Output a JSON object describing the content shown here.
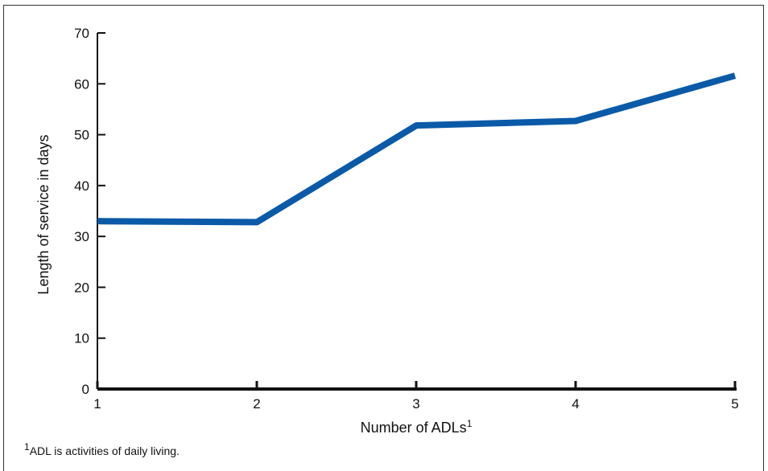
{
  "chart_data": {
    "type": "line",
    "x": [
      1,
      2,
      3,
      4,
      5
    ],
    "series": [
      {
        "values": [
          33,
          32.8,
          51.8,
          52.7,
          61.6
        ],
        "color": "#0a5aa8"
      }
    ],
    "xlabel": "Number of ADLs",
    "xlabel_sup": "1",
    "ylabel": "Length of service in days",
    "xlim": [
      1,
      5
    ],
    "ylim": [
      0,
      70
    ],
    "yticks": [
      0,
      10,
      20,
      30,
      40,
      50,
      60,
      70
    ],
    "xticks": [
      1,
      2,
      3,
      4,
      5
    ],
    "grid": false
  },
  "footnote": {
    "marker": "1",
    "text": "ADL is activities of daily living."
  }
}
